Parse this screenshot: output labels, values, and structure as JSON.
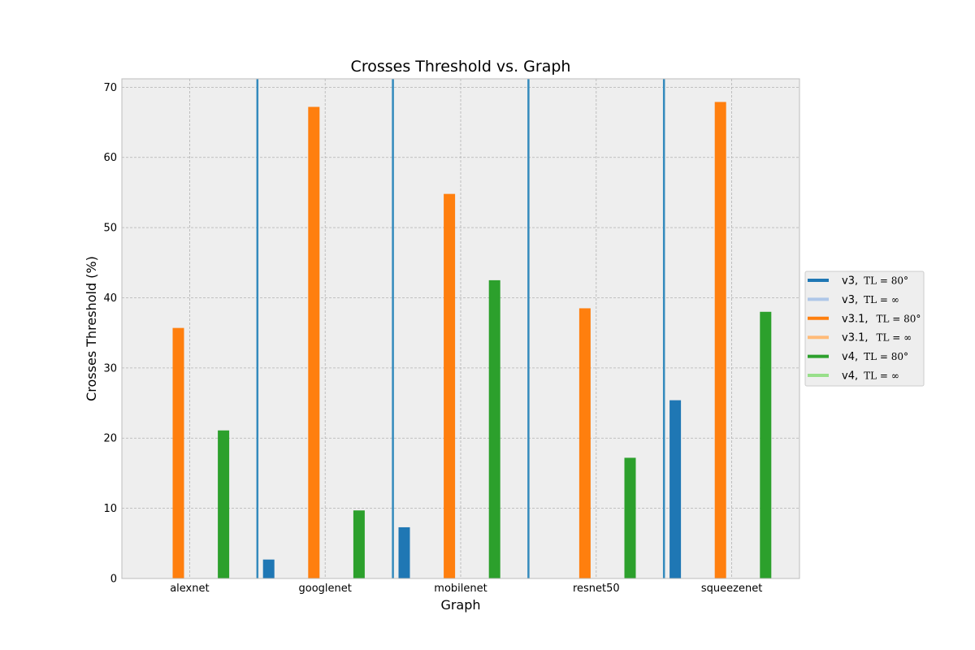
{
  "chart_data": {
    "type": "bar",
    "title": "Crosses Threshold vs. Graph",
    "xlabel": "Graph",
    "ylabel": "Crosses Threshold (%)",
    "ylim": [
      0,
      71.2
    ],
    "yticks": [
      0,
      10,
      20,
      30,
      40,
      50,
      60,
      70
    ],
    "grid": true,
    "legend_position": "right",
    "categories": [
      "alexnet",
      "googlenet",
      "mobilenet",
      "resnet50",
      "squeezenet"
    ],
    "series": [
      {
        "name": "v3,",
        "math": "TL = 80°",
        "color": "#1f77b4",
        "values": [
          0,
          2.7,
          7.3,
          0,
          25.4
        ]
      },
      {
        "name": "v3,",
        "math": "TL = ∞",
        "color": "#aec7e8",
        "values": [
          0,
          0,
          0,
          0,
          0
        ]
      },
      {
        "name": "v3.1,",
        "math": "TL = 80°",
        "color": "#ff7f0e",
        "values": [
          35.7,
          67.2,
          54.8,
          38.5,
          67.9
        ]
      },
      {
        "name": "v3.1,",
        "math": "TL = ∞",
        "color": "#ffbb78",
        "values": [
          0,
          0,
          0,
          0,
          0
        ]
      },
      {
        "name": "v4,",
        "math": "TL = 80°",
        "color": "#2ca02c",
        "values": [
          21.1,
          9.7,
          42.5,
          17.2,
          38.0
        ]
      },
      {
        "name": "v4,",
        "math": "TL = ∞",
        "color": "#98df8a",
        "values": [
          0,
          0,
          0,
          0,
          0
        ]
      }
    ],
    "separator_color": "#348abd"
  }
}
